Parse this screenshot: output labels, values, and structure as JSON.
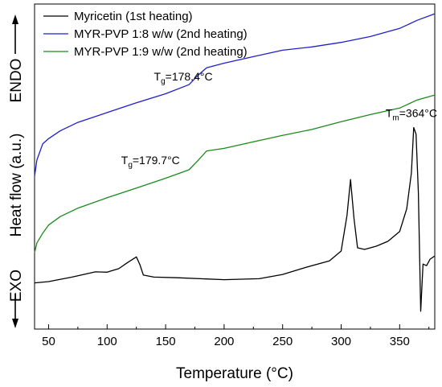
{
  "chart_data": {
    "type": "line",
    "xlabel": "Temperature (°C)",
    "ylabel": "Heat flow (a.u.)",
    "ylabel_top": "ENDO",
    "ylabel_bottom": "EXO",
    "xlim": [
      38,
      380
    ],
    "ylim": [
      0,
      100
    ],
    "x_ticks": [
      50,
      100,
      150,
      200,
      250,
      300,
      350
    ],
    "y_ticks_shown": false,
    "grid": false,
    "legend_position": "top-left",
    "series": [
      {
        "name": "Myricetin (1st heating)",
        "color": "#000000",
        "x": [
          38,
          50,
          70,
          90,
          100,
          110,
          118,
          125,
          128,
          131,
          140,
          160,
          200,
          230,
          250,
          270,
          290,
          300,
          305,
          308,
          311,
          314,
          320,
          330,
          340,
          350,
          356,
          360,
          362,
          364,
          366,
          368,
          370,
          373,
          376,
          380
        ],
        "y": [
          14.2,
          14.6,
          16.0,
          17.6,
          17.5,
          18.6,
          20.6,
          22.2,
          19.8,
          16.6,
          16.0,
          15.8,
          15.2,
          15.5,
          16.8,
          19.0,
          21.0,
          24.0,
          35.0,
          46.0,
          34.0,
          25.0,
          24.5,
          25.5,
          27.0,
          30.0,
          37.0,
          48.0,
          62.0,
          60.0,
          42.0,
          5.5,
          20.0,
          19.5,
          21.5,
          22.5
        ]
      },
      {
        "name": "MYR-PVP 1:8 w/w (2nd heating)",
        "color": "#1f1fcf",
        "x": [
          38,
          40,
          45,
          50,
          60,
          75,
          100,
          125,
          150,
          170,
          178,
          185,
          200,
          225,
          250,
          275,
          300,
          325,
          350,
          365,
          380
        ],
        "y": [
          47.0,
          52.0,
          57.0,
          58.6,
          61.0,
          63.6,
          66.6,
          69.6,
          72.4,
          75.2,
          78.2,
          80.4,
          81.8,
          83.8,
          85.8,
          86.8,
          88.2,
          90.0,
          92.5,
          95.0,
          97.0
        ]
      },
      {
        "name": "MYR-PVP 1:9 w/w (2nd heating)",
        "color": "#1a8a1a",
        "x": [
          38,
          40,
          45,
          50,
          60,
          75,
          100,
          125,
          150,
          170,
          178,
          185,
          200,
          225,
          250,
          275,
          300,
          325,
          350,
          365,
          380
        ],
        "y": [
          23.5,
          26.5,
          29.5,
          32.0,
          34.6,
          37.2,
          40.4,
          43.4,
          46.4,
          49.0,
          52.0,
          54.8,
          55.6,
          57.6,
          59.6,
          61.4,
          63.8,
          66.0,
          68.0,
          70.5,
          72.0
        ]
      }
    ],
    "annotations": [
      {
        "main": "T",
        "sub": "g",
        "rest": "=178.4°C",
        "x": 140,
        "y": 76.5
      },
      {
        "main": "T",
        "sub": "g",
        "rest": "=179.7°C",
        "x": 112,
        "y": 50.8
      },
      {
        "main": "T",
        "sub": "m",
        "rest": "=364°C",
        "x": 338,
        "y": 65.2
      }
    ]
  }
}
